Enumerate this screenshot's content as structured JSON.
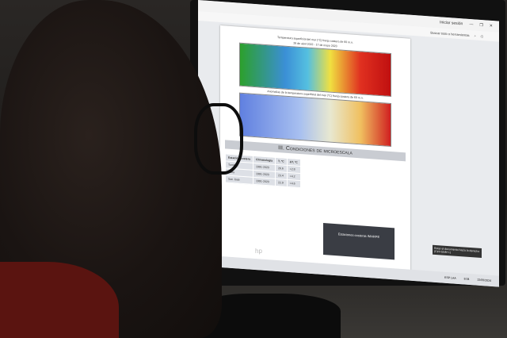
{
  "browser": {
    "login": "Iniciar sesión",
    "search_tools": "Buscar todo o herramientas"
  },
  "document": {
    "map1_caption": "Temperatura superficial del mar (°C) franja costera de 60 m.n.",
    "map1_dates": "26 de abril 2022 - 17 de mayo 2023",
    "map2_caption": "Anomalías de la temperatura superficial del mar (°C) franja costera de 60 m.n.",
    "section_title": "III. Condiciones de microescala",
    "table": {
      "headers": [
        "Estación costera",
        "Climatología",
        "T, °C",
        "ΔT, °C"
      ],
      "rows": [
        [
          "Tumbes",
          "1991-2020",
          "26.6",
          "+2.8"
        ],
        [
          "Paita",
          "1991-2020",
          "23.4",
          "+4.2"
        ],
        [
          "San José",
          "1991-2020",
          "22.9",
          "+4.6"
        ]
      ]
    },
    "inset_label": "Estaciones costeras IMARPE"
  },
  "tooltip": "Rotar el documento hacia la derecha (Ctrl+Shift++)",
  "taskbar": {
    "lang": "ESP LAA",
    "time": "8:04",
    "date": "22/05/2024"
  },
  "monitor_brand": "hp"
}
